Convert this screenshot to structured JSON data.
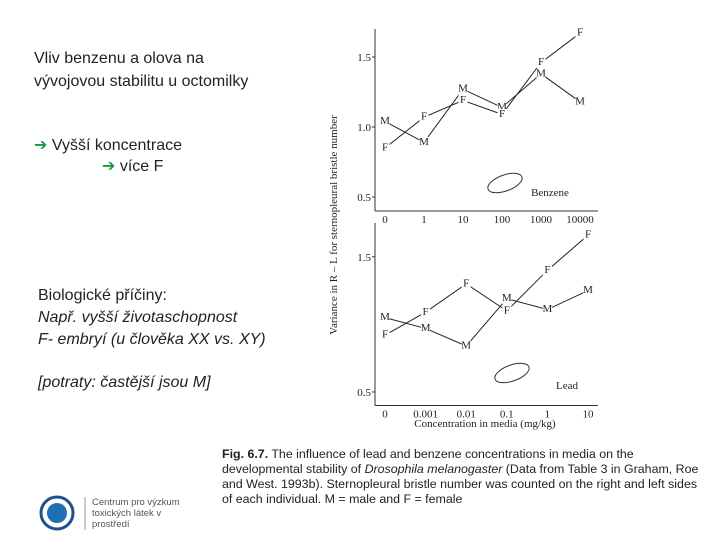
{
  "slide": {
    "title": "Vliv benzenu a olova na vývojovou stabilitu u octomilky",
    "point_1": "Vyšší koncentrace",
    "point_2": "více F",
    "causes_heading": "Biologické příčiny:",
    "causes_1": "Např. vyšší životaschopnost",
    "causes_2": "F- embryí (u člověka XX vs. XY)",
    "note": "[potraty: častější jsou M]",
    "logo_text": "Centrum pro výzkum toxických látek v prostředí"
  },
  "caption": {
    "label": "Fig. 6.7.",
    "text_1": "The influence of lead and benzene concentrations in media on the developmental stability of",
    "species": "Drosophila melanogaster",
    "text_2": "(Data from Table 3 in Graham, Roe and West. 1993b). Sternopleural bristle number was counted on the right and left sides of each individual. M = male and F = female"
  },
  "chart_data": [
    {
      "type": "line",
      "annotation": "Benzene",
      "ylabel": "Variance in R – L for sternopleural bristle number",
      "categories": [
        "0",
        "1",
        "10",
        "100",
        "1000",
        "10000"
      ],
      "series": [
        {
          "name": "M",
          "color": "#222222",
          "values": [
            1.04,
            0.89,
            1.27,
            1.14,
            1.38,
            1.18
          ]
        },
        {
          "name": "F",
          "color": "#222222",
          "values": [
            0.85,
            1.07,
            1.19,
            1.09,
            1.46,
            1.67
          ]
        }
      ],
      "ylim": [
        0.4,
        1.7
      ],
      "yticks": [
        0.5,
        {
          "value": 1,
          "label": "1.0"
        },
        1.5
      ]
    },
    {
      "type": "line",
      "annotation": "Lead",
      "xlabel": "Concentration in media (mg/kg)",
      "categories": [
        "0",
        "0.001",
        "0.01",
        "0.1",
        "1",
        "10"
      ],
      "series": [
        {
          "name": "M",
          "color": "#222222",
          "values": [
            1.05,
            0.97,
            0.84,
            1.19,
            1.11,
            1.25
          ]
        },
        {
          "name": "F",
          "color": "#222222",
          "values": [
            0.92,
            1.09,
            1.3,
            1.1,
            1.4,
            1.66
          ]
        }
      ],
      "ylim": [
        0.4,
        1.75
      ],
      "yticks": [
        0.5,
        1.5
      ]
    }
  ]
}
